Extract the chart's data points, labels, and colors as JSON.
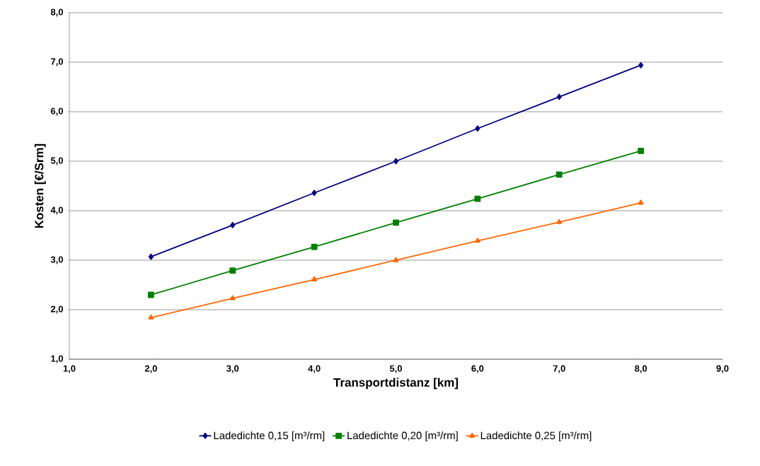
{
  "chart_data": {
    "type": "line",
    "xlabel": "Transportdistanz [km]",
    "ylabel": "Kosten [€/Srm]",
    "x": [
      2,
      3,
      4,
      5,
      6,
      7,
      8
    ],
    "xlim": [
      1,
      9
    ],
    "ylim": [
      1,
      8
    ],
    "xticks": [
      {
        "value": 1,
        "label": "1,0"
      },
      {
        "value": 2,
        "label": "2,0"
      },
      {
        "value": 3,
        "label": "3,0"
      },
      {
        "value": 4,
        "label": "4,0"
      },
      {
        "value": 5,
        "label": "5,0"
      },
      {
        "value": 6,
        "label": "6,0"
      },
      {
        "value": 7,
        "label": "7,0"
      },
      {
        "value": 8,
        "label": "8,0"
      },
      {
        "value": 9,
        "label": "9,0"
      }
    ],
    "yticks": [
      {
        "value": 1,
        "label": "1,0"
      },
      {
        "value": 2,
        "label": "2,0"
      },
      {
        "value": 3,
        "label": "3,0"
      },
      {
        "value": 4,
        "label": "4,0"
      },
      {
        "value": 5,
        "label": "5,0"
      },
      {
        "value": 6,
        "label": "6,0"
      },
      {
        "value": 7,
        "label": "7,0"
      },
      {
        "value": 8,
        "label": "8,0"
      }
    ],
    "grid": "y",
    "legend": "bottom",
    "line_style": "solid",
    "series": [
      {
        "name": "Ladedichte 0,15 [m³/rm]",
        "color": "#000080",
        "marker": "diamond",
        "values": [
          3.07,
          3.71,
          4.36,
          5.0,
          5.66,
          6.3,
          6.94
        ]
      },
      {
        "name": "Ladedichte 0,20 [m³/rm]",
        "color": "#008000",
        "marker": "square",
        "values": [
          2.3,
          2.79,
          3.27,
          3.76,
          4.24,
          4.73,
          5.21
        ]
      },
      {
        "name": "Ladedichte 0,25 [m³/rm]",
        "color": "#ff6600",
        "marker": "triangle",
        "values": [
          1.84,
          2.23,
          2.61,
          3.0,
          3.39,
          3.77,
          4.16
        ]
      }
    ]
  }
}
